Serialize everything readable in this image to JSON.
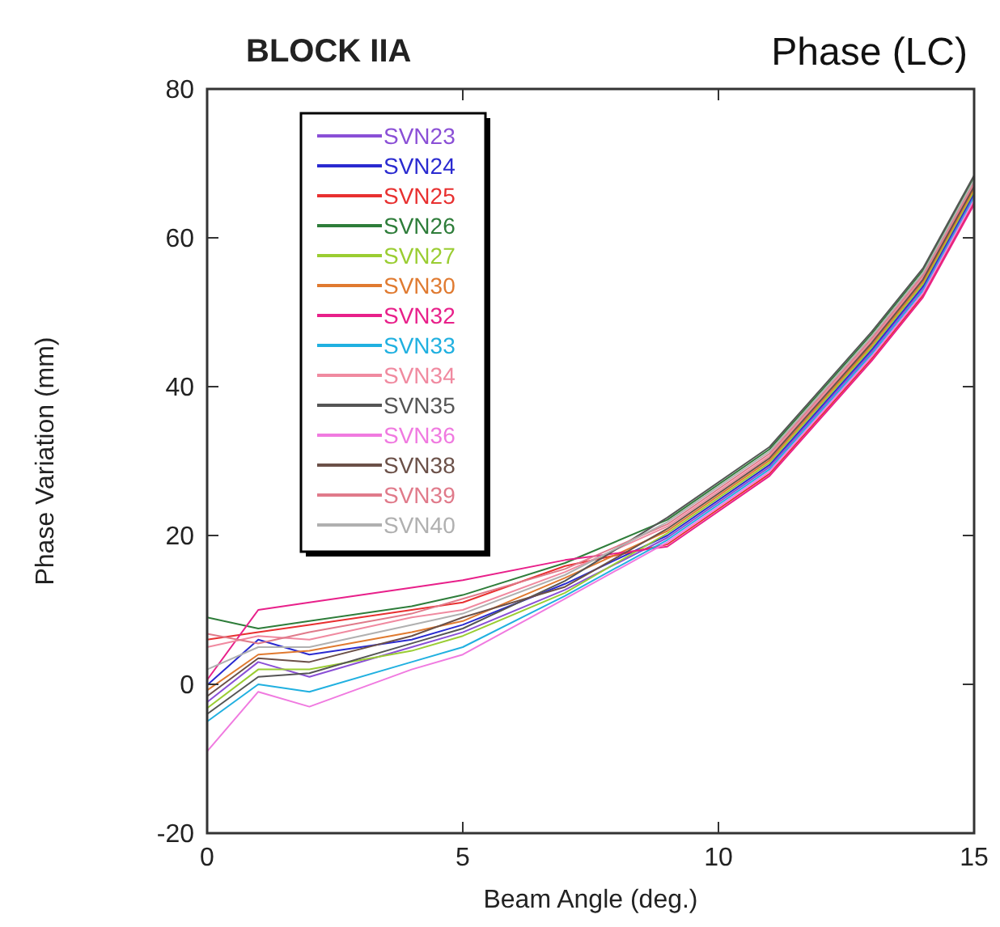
{
  "chart_data": {
    "type": "line",
    "title": "BLOCK IIA",
    "subtitle": "Phase (LC)",
    "xlabel": "Beam Angle (deg.)",
    "ylabel": "Phase Variation (mm)",
    "x": [
      0,
      1,
      2,
      4,
      5,
      7,
      9,
      11,
      13,
      14,
      15
    ],
    "xlim": [
      0,
      15
    ],
    "xticks": [
      0,
      5,
      10,
      15
    ],
    "ylim": [
      -20,
      80
    ],
    "yticks": [
      -20,
      0,
      20,
      40,
      60,
      80
    ],
    "legend": "top left",
    "grid": false,
    "series": [
      {
        "name": "SVN23",
        "color": "#8a4fd6",
        "values": [
          -2.4,
          3,
          1,
          5,
          7,
          12.7,
          19.7,
          29.2,
          44.7,
          53.2,
          65.7
        ]
      },
      {
        "name": "SVN24",
        "color": "#2a2ad0",
        "values": [
          -0.1,
          6,
          4,
          6,
          8,
          13.5,
          20,
          29.5,
          45,
          53.5,
          66
        ]
      },
      {
        "name": "SVN25",
        "color": "#e83030",
        "values": [
          6,
          7,
          8,
          10,
          11,
          15.9,
          18.8,
          28.3,
          43.8,
          52.3,
          64.8
        ]
      },
      {
        "name": "SVN26",
        "color": "#2e7d3a",
        "values": [
          9,
          7.5,
          8.5,
          10.5,
          12,
          16.3,
          22.1,
          31.6,
          47.1,
          55.6,
          68.1
        ]
      },
      {
        "name": "SVN27",
        "color": "#9acd32",
        "values": [
          -3.2,
          2,
          2,
          4.5,
          6.5,
          12.3,
          20.3,
          29.8,
          45.3,
          53.8,
          66.3
        ]
      },
      {
        "name": "SVN30",
        "color": "#e07a30",
        "values": [
          -0.8,
          4,
          4.5,
          7,
          8.5,
          14.3,
          20.6,
          30.1,
          45.6,
          54.1,
          66.6
        ]
      },
      {
        "name": "SVN32",
        "color": "#e8208a",
        "values": [
          0.6,
          10,
          11,
          13,
          14,
          16.7,
          18.5,
          28,
          43.5,
          52,
          64.5
        ]
      },
      {
        "name": "SVN33",
        "color": "#20b0e0",
        "values": [
          -5,
          0,
          -1,
          3,
          5,
          11.9,
          19.4,
          28.9,
          44.4,
          52.9,
          65.4
        ]
      },
      {
        "name": "SVN34",
        "color": "#f08aa0",
        "values": [
          5,
          6.5,
          6,
          9,
          10,
          15.1,
          21.2,
          30.7,
          46.2,
          54.7,
          67.2
        ]
      },
      {
        "name": "SVN35",
        "color": "#555555",
        "values": [
          -4,
          1,
          1.5,
          5.5,
          7.5,
          13.9,
          22.4,
          31.9,
          47.4,
          55.9,
          68.4
        ]
      },
      {
        "name": "SVN36",
        "color": "#f07ae0",
        "values": [
          -9,
          -1,
          -3,
          2,
          4,
          11.5,
          19.1,
          28.6,
          44.1,
          52.6,
          65.1
        ]
      },
      {
        "name": "SVN38",
        "color": "#6b5048",
        "values": [
          -1.6,
          3.5,
          3,
          6.5,
          9,
          13.1,
          20.9,
          30.4,
          45.9,
          54.4,
          66.9
        ]
      },
      {
        "name": "SVN39",
        "color": "#e07a8a",
        "values": [
          6.8,
          5.5,
          7,
          9.5,
          11.5,
          15.5,
          21.5,
          31,
          46.5,
          55,
          67.5
        ]
      },
      {
        "name": "SVN40",
        "color": "#b0b0b0",
        "values": [
          2,
          5,
          5,
          8,
          9.5,
          14.7,
          21.8,
          31.3,
          46.8,
          55.3,
          67.8
        ]
      }
    ]
  }
}
